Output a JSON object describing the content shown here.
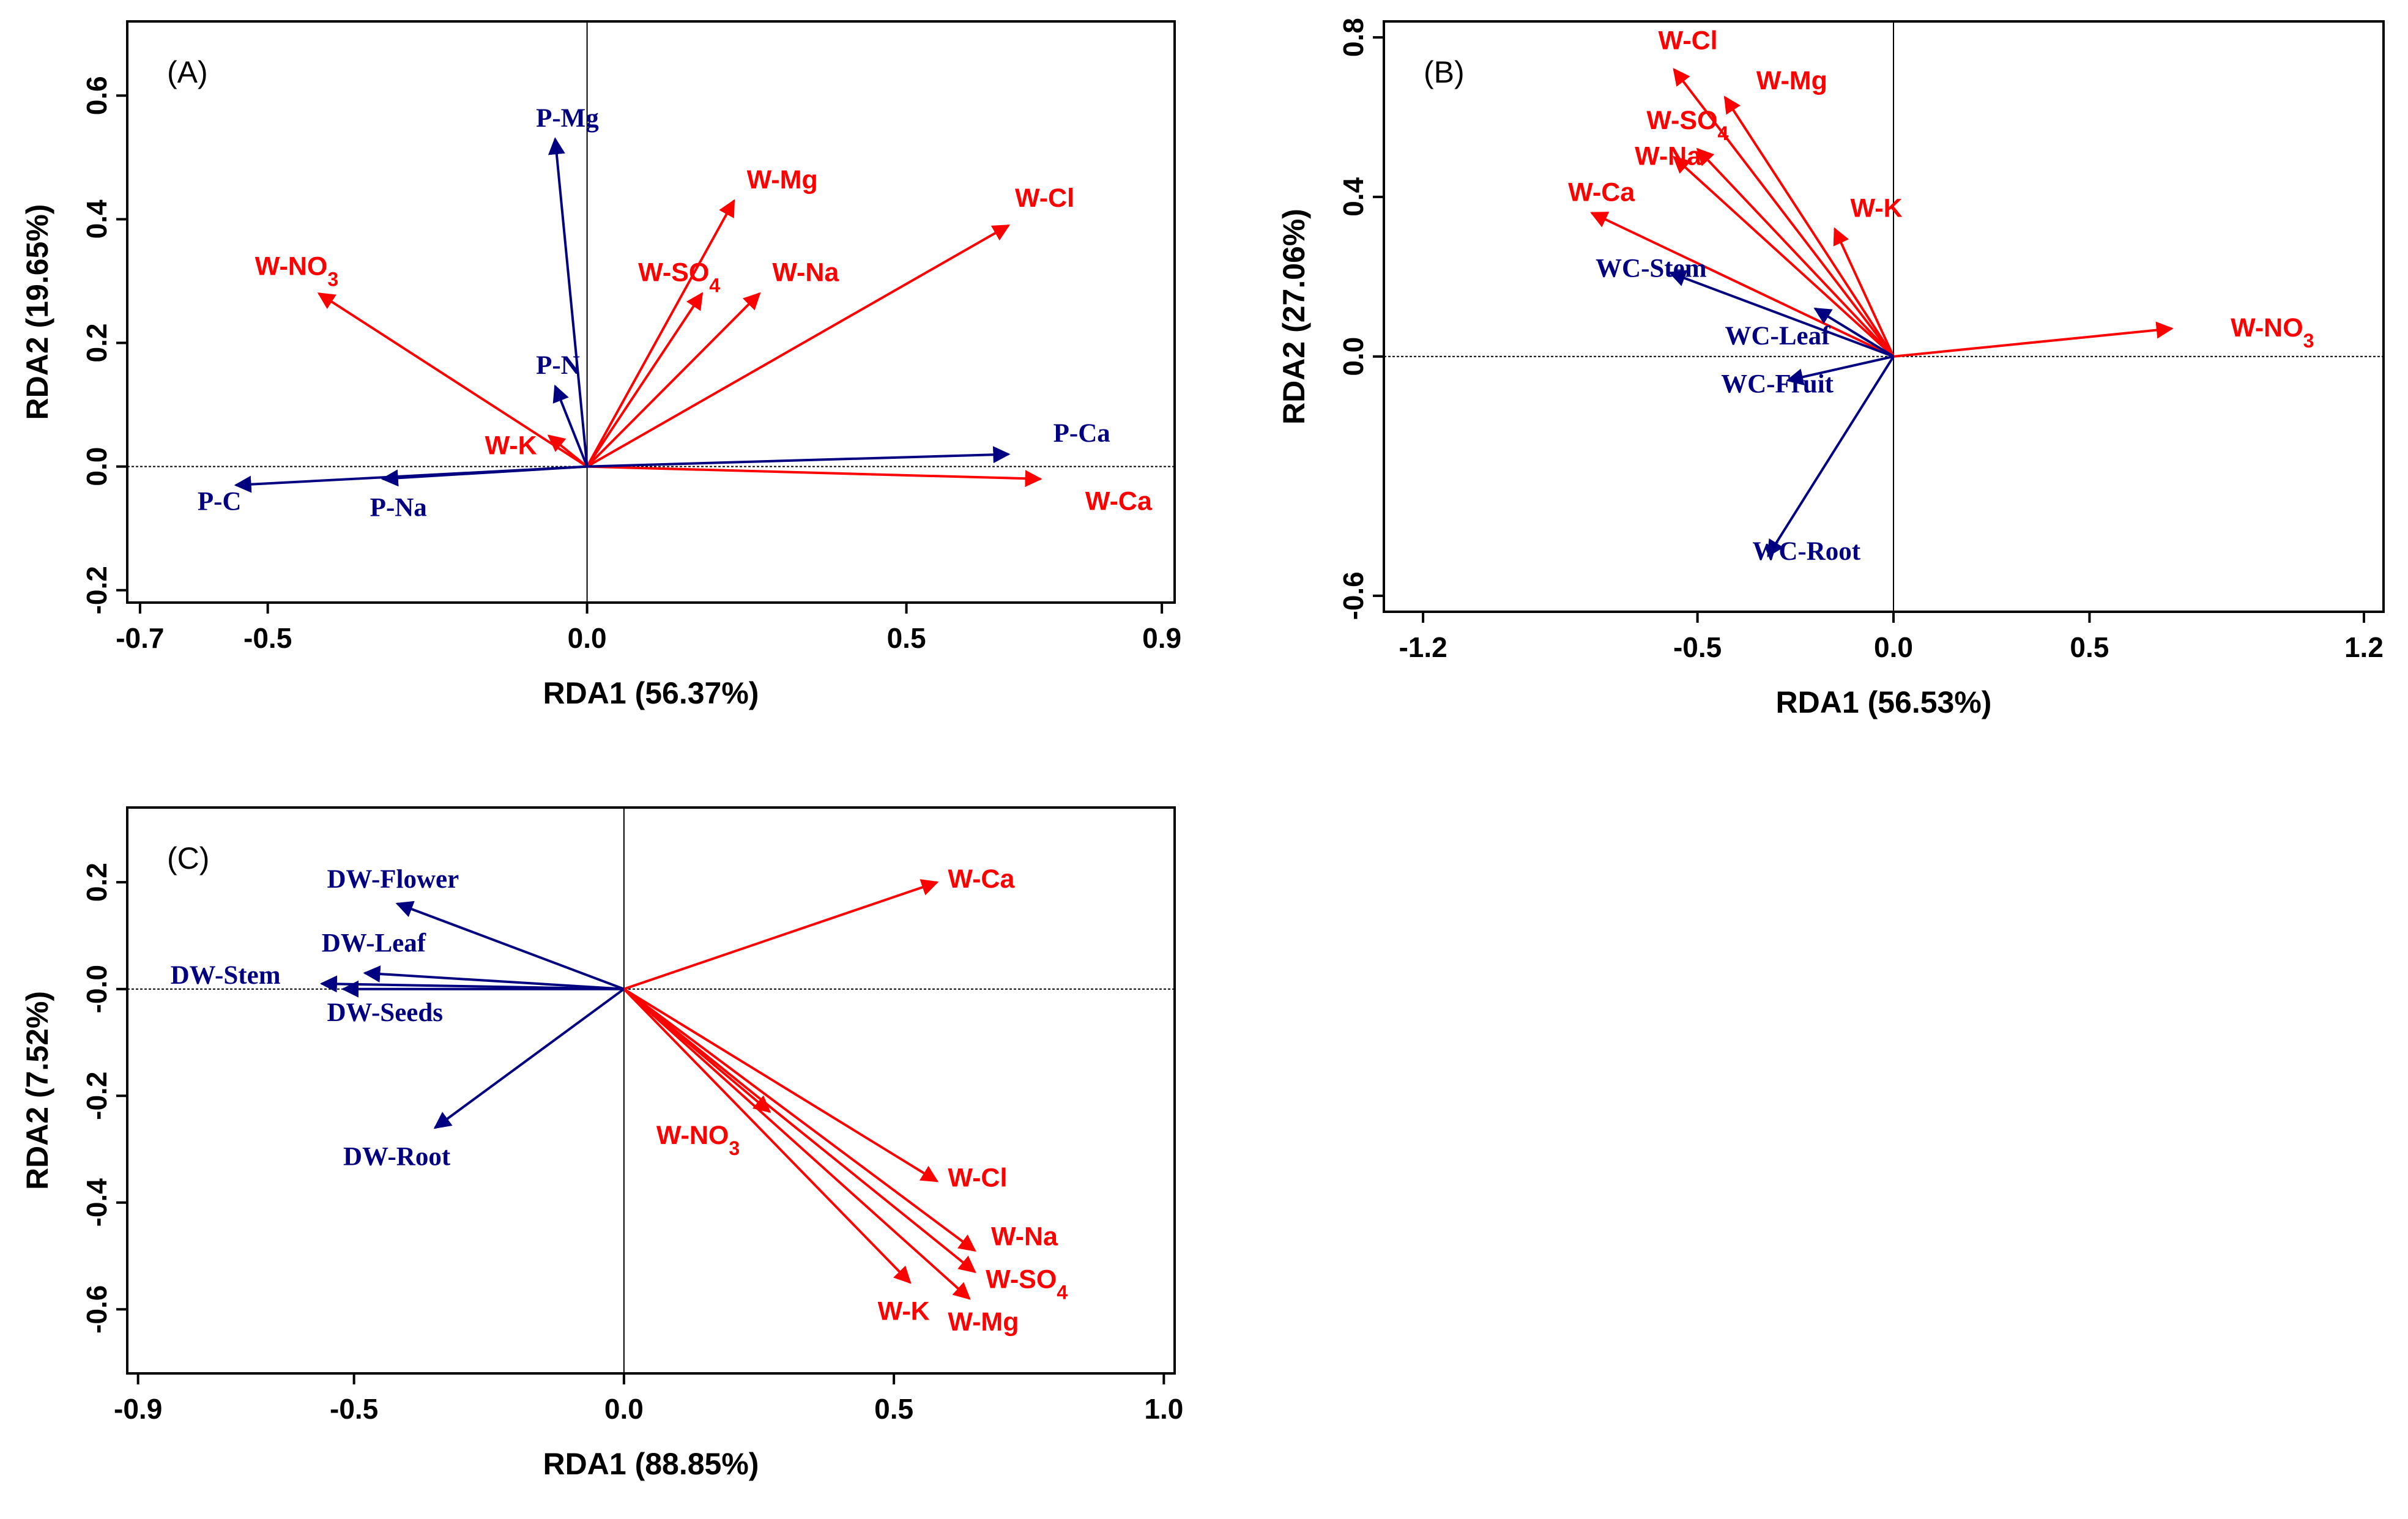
{
  "colors": {
    "response": "#ff0000",
    "explanatory": "#000080",
    "axis": "#000000"
  },
  "chart_data": [
    {
      "type": "scatter",
      "subtype": "rda-biplot",
      "panel": "(A)",
      "xlabel": "RDA1 (56.37%)",
      "ylabel": "RDA2 (19.65%)",
      "xlim": [
        -0.72,
        0.92
      ],
      "ylim": [
        -0.22,
        0.72
      ],
      "xticks": [
        -0.7,
        -0.5,
        0.0,
        0.5,
        0.9
      ],
      "xtick_labels": [
        "-0.7",
        "-0.5",
        "0.0",
        "0.5",
        "0.9"
      ],
      "yticks": [
        -0.2,
        0.0,
        0.2,
        0.4,
        0.6
      ],
      "ytick_labels": [
        "-0.2",
        "0.0",
        "0.2",
        "0.4",
        "0.6"
      ],
      "vectors": [
        {
          "label": "W-NO3",
          "x": -0.42,
          "y": 0.28,
          "lx": -0.52,
          "ly": 0.31,
          "color": "red"
        },
        {
          "label": "W-K",
          "x": -0.06,
          "y": 0.05,
          "lx": -0.16,
          "ly": 0.02,
          "color": "red"
        },
        {
          "label": "W-SO4",
          "x": 0.18,
          "y": 0.28,
          "lx": 0.08,
          "ly": 0.3,
          "color": "red"
        },
        {
          "label": "W-Na",
          "x": 0.27,
          "y": 0.28,
          "lx": 0.29,
          "ly": 0.3,
          "color": "red"
        },
        {
          "label": "W-Mg",
          "x": 0.23,
          "y": 0.43,
          "lx": 0.25,
          "ly": 0.45,
          "color": "red"
        },
        {
          "label": "W-Cl",
          "x": 0.66,
          "y": 0.39,
          "lx": 0.67,
          "ly": 0.42,
          "color": "red"
        },
        {
          "label": "W-Ca",
          "x": 0.71,
          "y": -0.02,
          "lx": 0.78,
          "ly": -0.07,
          "color": "red"
        },
        {
          "label": "P-Mg",
          "x": -0.05,
          "y": 0.53,
          "lx": -0.08,
          "ly": 0.55,
          "color": "blue"
        },
        {
          "label": "P-N",
          "x": -0.05,
          "y": 0.13,
          "lx": -0.08,
          "ly": 0.15,
          "color": "blue"
        },
        {
          "label": "P-Ca",
          "x": 0.66,
          "y": 0.02,
          "lx": 0.73,
          "ly": 0.04,
          "color": "blue"
        },
        {
          "label": "P-C",
          "x": -0.55,
          "y": -0.03,
          "lx": -0.61,
          "ly": -0.07,
          "color": "blue"
        },
        {
          "label": "P-Na",
          "x": -0.32,
          "y": -0.02,
          "lx": -0.34,
          "ly": -0.08,
          "color": "blue"
        }
      ]
    },
    {
      "type": "scatter",
      "subtype": "rda-biplot",
      "panel": "(B)",
      "xlabel": "RDA1 (56.53%)",
      "ylabel": "RDA2 (27.06%)",
      "xlim": [
        -1.3,
        1.25
      ],
      "ylim": [
        -0.64,
        0.84
      ],
      "xticks": [
        -1.2,
        -0.5,
        0.0,
        0.5,
        1.2
      ],
      "xtick_labels": [
        "-1.2",
        "-0.5",
        "0.0",
        "0.5",
        "1.2"
      ],
      "yticks": [
        -0.6,
        0.0,
        0.4,
        0.8
      ],
      "ytick_labels": [
        "-0.6",
        "0.0",
        "0.4",
        "0.8"
      ],
      "vectors": [
        {
          "label": "W-Cl",
          "x": -0.56,
          "y": 0.72,
          "lx": -0.6,
          "ly": 0.77,
          "color": "red"
        },
        {
          "label": "W-Mg",
          "x": -0.43,
          "y": 0.65,
          "lx": -0.35,
          "ly": 0.67,
          "color": "red"
        },
        {
          "label": "W-SO4",
          "x": -0.5,
          "y": 0.52,
          "lx": -0.63,
          "ly": 0.57,
          "color": "red"
        },
        {
          "label": "W-Na",
          "x": -0.56,
          "y": 0.5,
          "lx": -0.66,
          "ly": 0.48,
          "color": "red"
        },
        {
          "label": "W-Ca",
          "x": -0.77,
          "y": 0.36,
          "lx": -0.83,
          "ly": 0.39,
          "color": "red"
        },
        {
          "label": "W-K",
          "x": -0.15,
          "y": 0.32,
          "lx": -0.11,
          "ly": 0.35,
          "color": "red"
        },
        {
          "label": "W-NO3",
          "x": 0.71,
          "y": 0.07,
          "lx": 0.86,
          "ly": 0.05,
          "color": "red"
        },
        {
          "label": "WC-Stem",
          "x": -0.57,
          "y": 0.21,
          "lx": -0.76,
          "ly": 0.2,
          "color": "blue"
        },
        {
          "label": "WC-Leaf",
          "x": -0.2,
          "y": 0.12,
          "lx": -0.43,
          "ly": 0.03,
          "color": "blue"
        },
        {
          "label": "WC-Fruit",
          "x": -0.27,
          "y": -0.06,
          "lx": -0.44,
          "ly": -0.09,
          "color": "blue"
        },
        {
          "label": "WC-Root",
          "x": -0.32,
          "y": -0.5,
          "lx": -0.36,
          "ly": -0.51,
          "color": "blue"
        }
      ]
    },
    {
      "type": "scatter",
      "subtype": "rda-biplot",
      "panel": "(C)",
      "xlabel": "RDA1 (88.85%)",
      "ylabel": "RDA2 (7.52%)",
      "xlim": [
        -0.92,
        1.02
      ],
      "ylim": [
        -0.72,
        0.34
      ],
      "xticks": [
        -0.9,
        -0.5,
        0.0,
        0.5,
        1.0
      ],
      "xtick_labels": [
        "-0.9",
        "-0.5",
        "0.0",
        "0.5",
        "1.0"
      ],
      "yticks": [
        -0.6,
        -0.4,
        -0.2,
        0.0,
        0.2
      ],
      "ytick_labels": [
        "-0.6",
        "-0.4",
        "-0.2",
        "-0.0",
        "0.2"
      ],
      "vectors": [
        {
          "label": "W-Ca",
          "x": 0.58,
          "y": 0.2,
          "lx": 0.6,
          "ly": 0.19,
          "color": "red"
        },
        {
          "label": "W-NO3",
          "x": 0.27,
          "y": -0.23,
          "lx": 0.06,
          "ly": -0.29,
          "color": "red"
        },
        {
          "label": "W-Cl",
          "x": 0.58,
          "y": -0.36,
          "lx": 0.6,
          "ly": -0.37,
          "color": "red"
        },
        {
          "label": "W-Na",
          "x": 0.65,
          "y": -0.49,
          "lx": 0.68,
          "ly": -0.48,
          "color": "red"
        },
        {
          "label": "W-SO4",
          "x": 0.65,
          "y": -0.53,
          "lx": 0.67,
          "ly": -0.56,
          "color": "red"
        },
        {
          "label": "W-K",
          "x": 0.53,
          "y": -0.55,
          "lx": 0.47,
          "ly": -0.62,
          "color": "red"
        },
        {
          "label": "W-Mg",
          "x": 0.64,
          "y": -0.58,
          "lx": 0.6,
          "ly": -0.64,
          "color": "red"
        },
        {
          "label": "DW-Flower",
          "x": -0.42,
          "y": 0.16,
          "lx": -0.55,
          "ly": 0.19,
          "color": "blue"
        },
        {
          "label": "DW-Leaf",
          "x": -0.48,
          "y": 0.03,
          "lx": -0.56,
          "ly": 0.07,
          "color": "blue"
        },
        {
          "label": "DW-Stem",
          "x": -0.56,
          "y": 0.01,
          "lx": -0.84,
          "ly": 0.01,
          "color": "blue"
        },
        {
          "label": "DW-Seeds",
          "x": -0.52,
          "y": 0.0,
          "lx": -0.55,
          "ly": -0.06,
          "color": "blue"
        },
        {
          "label": "DW-Root",
          "x": -0.35,
          "y": -0.26,
          "lx": -0.52,
          "ly": -0.33,
          "color": "blue"
        }
      ]
    }
  ]
}
